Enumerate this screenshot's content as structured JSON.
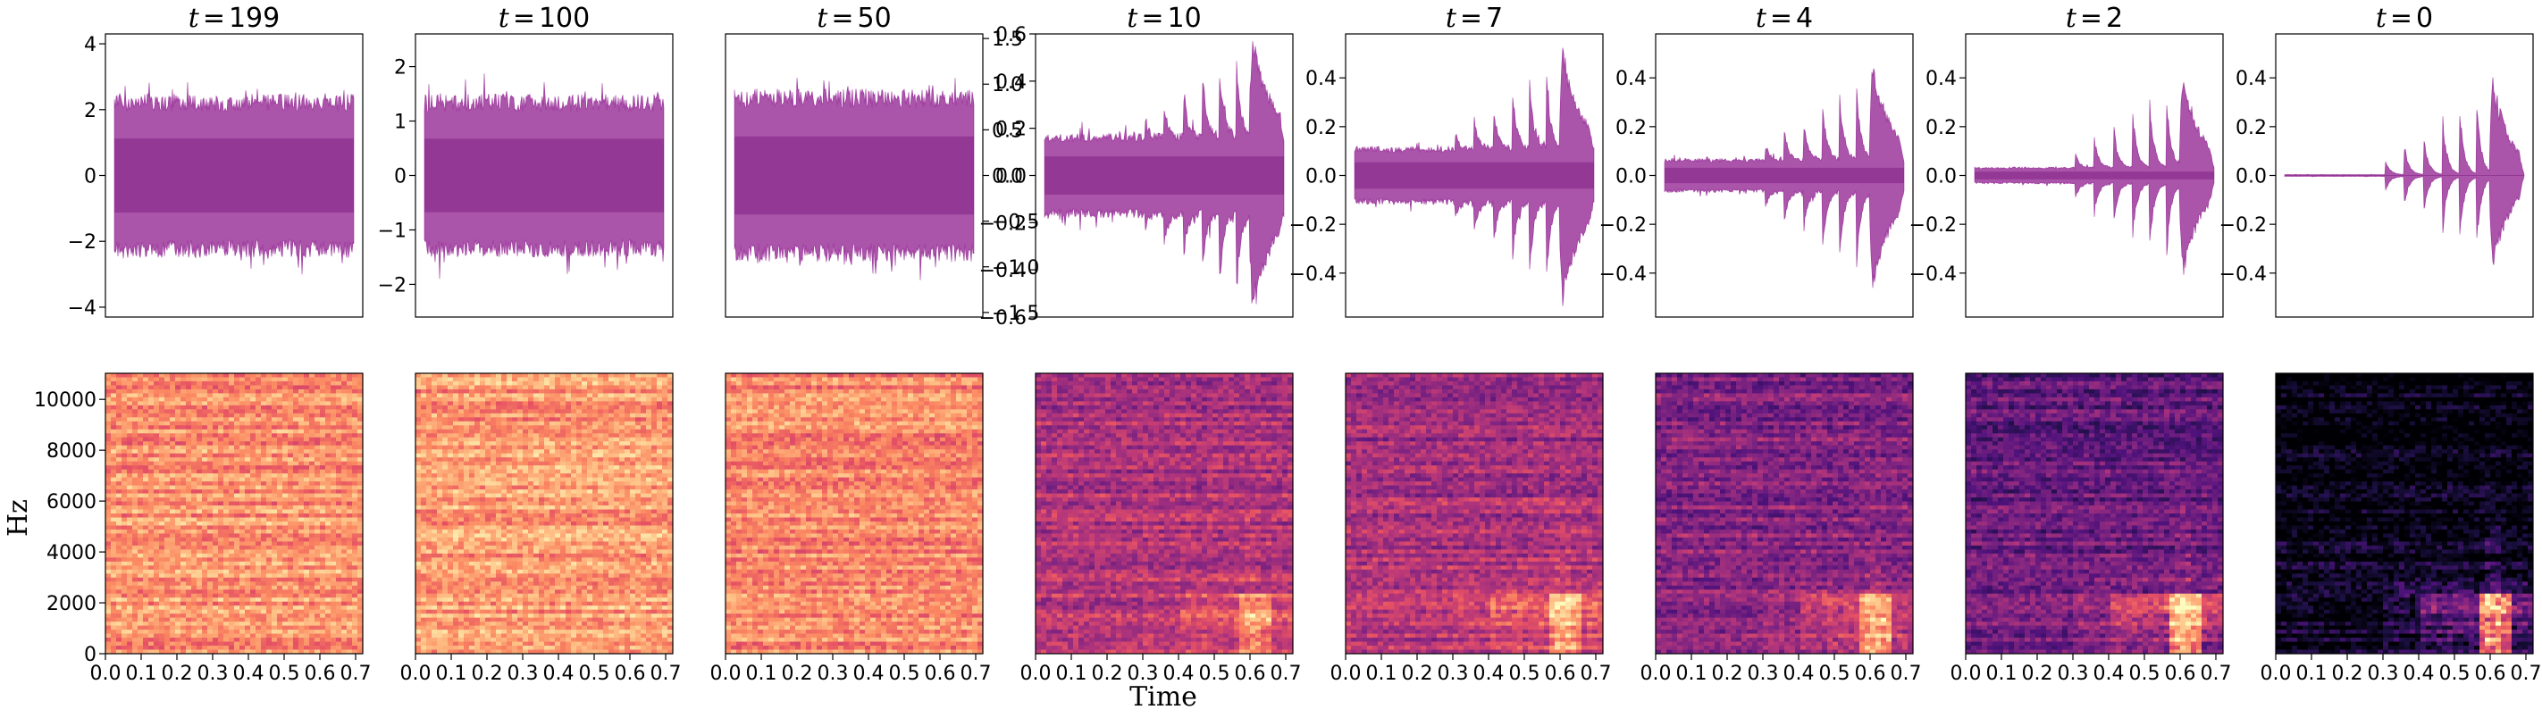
{
  "figure": {
    "xlabel": "Time",
    "ylabel": "Hz"
  },
  "chart_data": [
    {
      "panel": 1,
      "row": "waveform",
      "type": "area",
      "title_var": "t",
      "title_value": "199",
      "ylim": [
        -4.3,
        4.3
      ],
      "yticks": [
        -4,
        -2,
        0,
        2,
        4
      ],
      "ytick_labels": [
        "−4",
        "−2",
        "0",
        "2",
        "4"
      ],
      "ytick_side": "left",
      "envelope_amp": 2.5,
      "noise_amp": 3.2,
      "burst_amp": 0.0,
      "color": "#8e1b8e"
    },
    {
      "panel": 2,
      "row": "waveform",
      "type": "area",
      "title_var": "t",
      "title_value": "100",
      "ylim": [
        -2.6,
        2.6
      ],
      "yticks": [
        -2,
        -1,
        0,
        1,
        2
      ],
      "ytick_labels": [
        "−2",
        "−1",
        "0",
        "1",
        "2"
      ],
      "ytick_side": "left",
      "envelope_amp": 1.5,
      "noise_amp": 1.95,
      "burst_amp": 0.0,
      "color": "#8e1b8e"
    },
    {
      "panel": 3,
      "row": "waveform",
      "type": "area",
      "title_var": "t",
      "title_value": "50",
      "ylim": [
        -1.55,
        1.55
      ],
      "yticks": [
        -1.5,
        -1.0,
        -0.5,
        0.0,
        0.5,
        1.0,
        1.5
      ],
      "ytick_labels": [
        "−1.5",
        "−1.0",
        "−0.5",
        "0.0",
        "0.5",
        "1.0",
        "1.5"
      ],
      "ytick_side": "right",
      "envelope_amp": 0.95,
      "noise_amp": 1.2,
      "burst_amp": 0.0,
      "color": "#8e1b8e"
    },
    {
      "panel": 4,
      "row": "waveform",
      "type": "area",
      "title_var": "t",
      "title_value": "10",
      "ylim": [
        -0.6,
        0.6
      ],
      "yticks": [
        -0.6,
        -0.4,
        -0.2,
        0.0,
        0.2,
        0.4,
        0.6
      ],
      "ytick_labels": [
        "−0.6",
        "−0.4",
        "−0.2",
        "0.0",
        "0.2",
        "0.4",
        "0.6"
      ],
      "ytick_side": "left",
      "envelope_amp": 0.18,
      "noise_amp": 0.24,
      "burst_amp": 0.55,
      "color": "#8e1b8e"
    },
    {
      "panel": 5,
      "row": "waveform",
      "type": "area",
      "title_var": "t",
      "title_value": "7",
      "ylim": [
        -0.58,
        0.58
      ],
      "yticks": [
        -0.4,
        -0.2,
        0.0,
        0.2,
        0.4
      ],
      "ytick_labels": [
        "−0.4",
        "−0.2",
        "0.0",
        "0.2",
        "0.4"
      ],
      "ytick_side": "left",
      "envelope_amp": 0.12,
      "noise_amp": 0.16,
      "burst_amp": 0.53,
      "color": "#8e1b8e"
    },
    {
      "panel": 6,
      "row": "waveform",
      "type": "area",
      "title_var": "t",
      "title_value": "4",
      "ylim": [
        -0.58,
        0.58
      ],
      "yticks": [
        -0.4,
        -0.2,
        0.0,
        0.2,
        0.4
      ],
      "ytick_labels": [
        "−0.4",
        "−0.2",
        "0.0",
        "0.2",
        "0.4"
      ],
      "ytick_side": "left",
      "envelope_amp": 0.07,
      "noise_amp": 0.09,
      "burst_amp": 0.52,
      "color": "#8e1b8e"
    },
    {
      "panel": 7,
      "row": "waveform",
      "type": "area",
      "title_var": "t",
      "title_value": "2",
      "ylim": [
        -0.58,
        0.58
      ],
      "yticks": [
        -0.4,
        -0.2,
        0.0,
        0.2,
        0.4
      ],
      "ytick_labels": [
        "−0.4",
        "−0.2",
        "0.0",
        "0.2",
        "0.4"
      ],
      "ytick_side": "left",
      "envelope_amp": 0.035,
      "noise_amp": 0.045,
      "burst_amp": 0.5,
      "color": "#8e1b8e"
    },
    {
      "panel": 8,
      "row": "waveform",
      "type": "area",
      "title_var": "t",
      "title_value": "0",
      "ylim": [
        -0.58,
        0.58
      ],
      "yticks": [
        -0.4,
        -0.2,
        0.0,
        0.2,
        0.4
      ],
      "ytick_labels": [
        "−0.4",
        "−0.2",
        "0.0",
        "0.2",
        "0.4"
      ],
      "ytick_side": "left",
      "envelope_amp": 0.004,
      "noise_amp": 0.006,
      "burst_amp": 0.5,
      "color": "#8e1b8e"
    },
    {
      "panel": 9,
      "row": "spectrogram",
      "type": "heatmap",
      "xlim": [
        0,
        0.72
      ],
      "ylim": [
        0,
        11025
      ],
      "xticks": [
        0.0,
        0.1,
        0.2,
        0.3,
        0.4,
        0.5,
        0.6,
        0.7
      ],
      "xtick_labels": [
        "0.0",
        "0.1",
        "0.2",
        "0.3",
        "0.4",
        "0.5",
        "0.6",
        "0.7"
      ],
      "yticks": [
        0,
        2000,
        4000,
        6000,
        8000,
        10000
      ],
      "ytick_labels": [
        "0",
        "2000",
        "4000",
        "6000",
        "8000",
        "10000"
      ],
      "noise_level": 0.78,
      "signal_level": 0.0,
      "colormap": "magma"
    },
    {
      "panel": 10,
      "row": "spectrogram",
      "type": "heatmap",
      "xlim": [
        0,
        0.72
      ],
      "ylim": [
        0,
        11025
      ],
      "xticks": [
        0.0,
        0.1,
        0.2,
        0.3,
        0.4,
        0.5,
        0.6,
        0.7
      ],
      "xtick_labels": [
        "0.0",
        "0.1",
        "0.2",
        "0.3",
        "0.4",
        "0.5",
        "0.6",
        "0.7"
      ],
      "yticks": [],
      "ytick_labels": [],
      "noise_level": 0.8,
      "signal_level": 0.0,
      "colormap": "magma"
    },
    {
      "panel": 11,
      "row": "spectrogram",
      "type": "heatmap",
      "xlim": [
        0,
        0.72
      ],
      "ylim": [
        0,
        11025
      ],
      "xticks": [
        0.0,
        0.1,
        0.2,
        0.3,
        0.4,
        0.5,
        0.6,
        0.7
      ],
      "xtick_labels": [
        "0.0",
        "0.1",
        "0.2",
        "0.3",
        "0.4",
        "0.5",
        "0.6",
        "0.7"
      ],
      "yticks": [],
      "ytick_labels": [],
      "noise_level": 0.76,
      "signal_level": 0.0,
      "colormap": "magma"
    },
    {
      "panel": 12,
      "row": "spectrogram",
      "type": "heatmap",
      "xlim": [
        0,
        0.72
      ],
      "ylim": [
        0,
        11025
      ],
      "xticks": [
        0.0,
        0.1,
        0.2,
        0.3,
        0.4,
        0.5,
        0.6,
        0.7
      ],
      "xtick_labels": [
        "0.0",
        "0.1",
        "0.2",
        "0.3",
        "0.4",
        "0.5",
        "0.6",
        "0.7"
      ],
      "yticks": [],
      "ytick_labels": [],
      "noise_level": 0.52,
      "signal_level": 0.25,
      "colormap": "magma"
    },
    {
      "panel": 13,
      "row": "spectrogram",
      "type": "heatmap",
      "xlim": [
        0,
        0.72
      ],
      "ylim": [
        0,
        11025
      ],
      "xticks": [
        0.0,
        0.1,
        0.2,
        0.3,
        0.4,
        0.5,
        0.6,
        0.7
      ],
      "xtick_labels": [
        "0.0",
        "0.1",
        "0.2",
        "0.3",
        "0.4",
        "0.5",
        "0.6",
        "0.7"
      ],
      "yticks": [],
      "ytick_labels": [],
      "noise_level": 0.5,
      "signal_level": 0.3,
      "colormap": "magma"
    },
    {
      "panel": 14,
      "row": "spectrogram",
      "type": "heatmap",
      "xlim": [
        0,
        0.72
      ],
      "ylim": [
        0,
        11025
      ],
      "xticks": [
        0.0,
        0.1,
        0.2,
        0.3,
        0.4,
        0.5,
        0.6,
        0.7
      ],
      "xtick_labels": [
        "0.0",
        "0.1",
        "0.2",
        "0.3",
        "0.4",
        "0.5",
        "0.6",
        "0.7"
      ],
      "yticks": [],
      "ytick_labels": [],
      "noise_level": 0.42,
      "signal_level": 0.38,
      "colormap": "magma"
    },
    {
      "panel": 15,
      "row": "spectrogram",
      "type": "heatmap",
      "xlim": [
        0,
        0.72
      ],
      "ylim": [
        0,
        11025
      ],
      "xticks": [
        0.0,
        0.1,
        0.2,
        0.3,
        0.4,
        0.5,
        0.6,
        0.7
      ],
      "xtick_labels": [
        "0.0",
        "0.1",
        "0.2",
        "0.3",
        "0.4",
        "0.5",
        "0.6",
        "0.7"
      ],
      "yticks": [],
      "ytick_labels": [],
      "noise_level": 0.35,
      "signal_level": 0.45,
      "colormap": "magma"
    },
    {
      "panel": 16,
      "row": "spectrogram",
      "type": "heatmap",
      "xlim": [
        0,
        0.72
      ],
      "ylim": [
        0,
        11025
      ],
      "xticks": [
        0.0,
        0.1,
        0.2,
        0.3,
        0.4,
        0.5,
        0.6,
        0.7
      ],
      "xtick_labels": [
        "0.0",
        "0.1",
        "0.2",
        "0.3",
        "0.4",
        "0.5",
        "0.6",
        "0.7"
      ],
      "yticks": [],
      "ytick_labels": [],
      "noise_level": 0.06,
      "signal_level": 0.62,
      "colormap": "magma"
    }
  ]
}
